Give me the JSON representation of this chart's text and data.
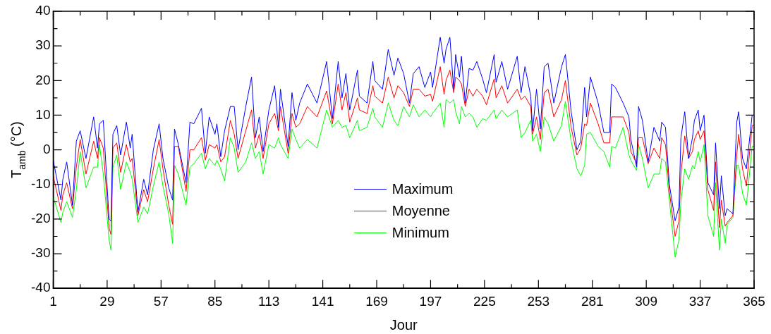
{
  "chart_data": {
    "type": "line",
    "xlabel": "Jour",
    "ylabel": "T$_{amb}$ (°C)",
    "legend": "center",
    "xlim": [
      1,
      365
    ],
    "ylim": [
      -40,
      40
    ],
    "xticks": [
      1,
      {
        "value": 15,
        "label": null
      },
      29,
      {
        "value": 43,
        "label": null
      },
      57,
      {
        "value": 71,
        "label": null
      },
      85,
      {
        "value": 99,
        "label": null
      },
      113,
      {
        "value": 127,
        "label": null
      },
      141,
      {
        "value": 155,
        "label": null
      },
      169,
      {
        "value": 183,
        "label": null
      },
      197,
      {
        "value": 211,
        "label": null
      },
      225,
      {
        "value": 239,
        "label": null
      },
      253,
      {
        "value": 267,
        "label": null
      },
      281,
      {
        "value": 295,
        "label": null
      },
      309,
      {
        "value": 323,
        "label": null
      },
      337,
      {
        "value": 351,
        "label": null
      },
      365
    ],
    "yticks": [
      -40,
      {
        "value": -35,
        "label": null
      },
      -30,
      {
        "value": -25,
        "label": null
      },
      -20,
      {
        "value": -15,
        "label": null
      },
      -10,
      {
        "value": -5,
        "label": null
      },
      0,
      {
        "value": 5,
        "label": null
      },
      10,
      {
        "value": 15,
        "label": null
      },
      20,
      {
        "value": 25,
        "label": null
      },
      30,
      {
        "value": 35,
        "label": null
      },
      40
    ],
    "x": [
      1,
      5,
      6,
      8,
      11,
      13,
      15,
      18,
      22,
      24,
      25,
      27,
      30,
      31,
      32,
      34,
      36,
      39,
      41,
      42,
      45,
      48,
      50,
      53,
      56,
      58,
      61,
      63,
      64,
      66,
      70,
      72,
      74,
      78,
      80,
      82,
      85,
      86,
      88,
      90,
      93,
      95,
      97,
      101,
      104,
      106,
      108,
      110,
      113,
      116,
      118,
      119,
      123,
      125,
      127,
      129,
      133,
      138,
      143,
      146,
      149,
      151,
      153,
      155,
      159,
      160,
      164,
      167,
      168,
      172,
      175,
      178,
      180,
      183,
      186,
      188,
      191,
      194,
      197,
      198,
      202,
      204,
      205,
      207,
      209,
      210,
      212,
      213,
      215,
      217,
      219,
      221,
      224,
      226,
      230,
      231,
      234,
      237,
      242,
      244,
      246,
      249,
      250,
      252,
      254,
      256,
      258,
      261,
      265,
      267,
      270,
      273,
      275,
      277,
      278,
      280,
      284,
      287,
      290,
      291,
      293,
      297,
      300,
      301,
      304,
      305,
      307,
      310,
      313,
      316,
      317,
      319,
      321,
      324,
      326,
      327,
      329,
      331,
      333,
      334,
      336,
      337,
      339,
      341,
      344,
      345,
      347,
      348,
      350,
      351,
      354,
      356,
      357,
      359,
      361,
      364,
      365
    ],
    "series": [
      {
        "name": "Maximum",
        "color": "#0000ff",
        "values": [
          -3,
          -14.5,
          -8.5,
          -3.5,
          -16,
          2.5,
          5.5,
          -2.5,
          9.5,
          0.5,
          7.5,
          8.5,
          -20,
          -20.5,
          4.5,
          7,
          -1.5,
          8,
          0.5,
          4.5,
          -18,
          -8.5,
          -13,
          0,
          7.5,
          -2.5,
          -11,
          -14.5,
          6,
          1.5,
          -9.5,
          8,
          7.5,
          12,
          -1,
          9.5,
          4.5,
          7.5,
          -2,
          5.5,
          12.5,
          12.5,
          0,
          12.5,
          21,
          3.5,
          9.5,
          -0.5,
          11.5,
          18.5,
          6.5,
          17.5,
          1,
          16.5,
          8.5,
          13.5,
          19,
          13.5,
          25.5,
          9,
          25.5,
          15,
          22,
          11.5,
          23,
          15.5,
          13.5,
          25.5,
          20,
          17.5,
          29,
          21.5,
          26.5,
          22,
          13.5,
          22,
          24,
          18,
          22.5,
          18,
          32.5,
          25,
          29,
          32.5,
          17.5,
          27.5,
          21,
          27,
          13.5,
          23.5,
          23,
          25.5,
          20.5,
          16.5,
          27.5,
          19.5,
          25.5,
          17.5,
          27,
          16.5,
          24,
          15.5,
          5.5,
          17.5,
          6,
          24,
          25,
          13.5,
          24,
          27.5,
          11,
          0,
          2.5,
          18,
          9.5,
          21,
          13.5,
          5,
          5,
          19,
          18,
          13.5,
          9.5,
          3,
          -5,
          12.5,
          8.5,
          -3.5,
          6.5,
          2.5,
          8,
          6.5,
          -10,
          -20.5,
          -16.5,
          3.5,
          11,
          -2.5,
          3.5,
          8.5,
          11.5,
          5.5,
          10,
          -9.5,
          -13,
          2,
          -17,
          -7.5,
          -19,
          -17,
          -18.5,
          8,
          11,
          -2.5,
          -5.5,
          10,
          10
        ]
      },
      {
        "name": "Moyenne",
        "color": "#ff0000",
        "values": [
          -7.5,
          -17.5,
          -13,
          -9.5,
          -17,
          -5,
          3,
          -7,
          2.5,
          -2.5,
          3.5,
          0.5,
          -22.5,
          -24.5,
          0.5,
          2,
          -6.5,
          1.5,
          -3.5,
          -2.5,
          -19,
          -11.5,
          -15,
          -5.5,
          3,
          -5.5,
          -16,
          -21.5,
          1,
          1,
          -12,
          0,
          0,
          3.5,
          -3,
          1.5,
          0.5,
          1.5,
          -3.5,
          -2,
          8.5,
          4.5,
          -2.5,
          5.5,
          11.5,
          0.5,
          4.5,
          -2.5,
          7.5,
          10.5,
          5.5,
          12.5,
          -1,
          10.5,
          6.5,
          7.5,
          12.5,
          9.5,
          17,
          7.5,
          19,
          11.5,
          16.5,
          8,
          15,
          11.5,
          10.5,
          18.5,
          15.5,
          13.5,
          21,
          15,
          18.5,
          16.5,
          12.5,
          17.5,
          17.5,
          15.5,
          16,
          14,
          24,
          16,
          20,
          23,
          16.5,
          21,
          20,
          19,
          12.5,
          17.5,
          15.5,
          17.5,
          15.5,
          13,
          20.5,
          15,
          18.5,
          13.5,
          17.5,
          14.5,
          15.5,
          12.5,
          4.5,
          9.5,
          3,
          16.5,
          17.5,
          9.5,
          14.5,
          20,
          6.5,
          -1.5,
          0.5,
          7.5,
          7,
          13.5,
          7.5,
          2,
          2,
          9.5,
          9.5,
          9.5,
          5,
          -0.5,
          -4,
          3.5,
          3.5,
          -4,
          0.5,
          -2.5,
          3.5,
          1.5,
          -12,
          -25,
          -20.5,
          -7,
          4,
          -2.5,
          -0.5,
          3,
          5.5,
          3,
          5.5,
          -11.5,
          -17.5,
          -3.5,
          -22.5,
          -14.5,
          -22,
          -21,
          -19,
          -1.5,
          4.5,
          -5.5,
          -10.5,
          7,
          7
        ]
      },
      {
        "name": "Minimum",
        "color": "#00ff00",
        "values": [
          -13.5,
          -21,
          -18,
          -15,
          -19.5,
          -11.5,
          -0.5,
          -11,
          -5,
          -5,
          1.5,
          -7,
          -26,
          -29,
          -5,
          -1.5,
          -11.5,
          -3.5,
          -6.5,
          -8.5,
          -21,
          -16.5,
          -18.5,
          -10.5,
          -3.5,
          -10.5,
          -18.5,
          -27,
          -4.5,
          -7,
          -16,
          -5,
          -4,
          -1,
          -5.5,
          -2.5,
          -4.5,
          -3,
          -5.5,
          -9,
          3.5,
          0.5,
          -6.5,
          -3.5,
          2,
          -2.5,
          -0.5,
          -7,
          1.5,
          0.5,
          3.5,
          1.5,
          -2.5,
          6,
          3,
          0.5,
          3,
          0.5,
          11.5,
          6.5,
          8.5,
          6.5,
          7,
          3.5,
          8.5,
          5.5,
          6.5,
          12,
          9.5,
          6.5,
          13.5,
          8.5,
          7,
          12.5,
          9.5,
          13,
          9.5,
          11.5,
          9.5,
          10.5,
          13.5,
          6.5,
          14.5,
          13.5,
          14.5,
          11,
          7.5,
          12.5,
          9.5,
          10.5,
          9.5,
          6.5,
          9,
          8.5,
          11.5,
          9,
          11.5,
          9.5,
          11.5,
          3.5,
          5,
          8.5,
          2.5,
          4.5,
          -0.5,
          9.5,
          7.5,
          2.5,
          7,
          14,
          2.5,
          -5.5,
          -7.5,
          -4.5,
          4.5,
          5,
          1,
          -0.5,
          -5,
          1,
          0.5,
          6.5,
          -1.5,
          -3,
          -6,
          1.5,
          -2.5,
          -11,
          -7,
          -7,
          -2.5,
          -3.5,
          -14.5,
          -31,
          -26,
          -15,
          -5.5,
          -8.5,
          -4.5,
          -5.5,
          -0.5,
          -3.5,
          1.5,
          -19,
          -25,
          -9.5,
          -29,
          -20,
          -27,
          -21.5,
          -19.5,
          -4.5,
          -4.5,
          -12.5,
          -16,
          1,
          1
        ]
      }
    ]
  }
}
